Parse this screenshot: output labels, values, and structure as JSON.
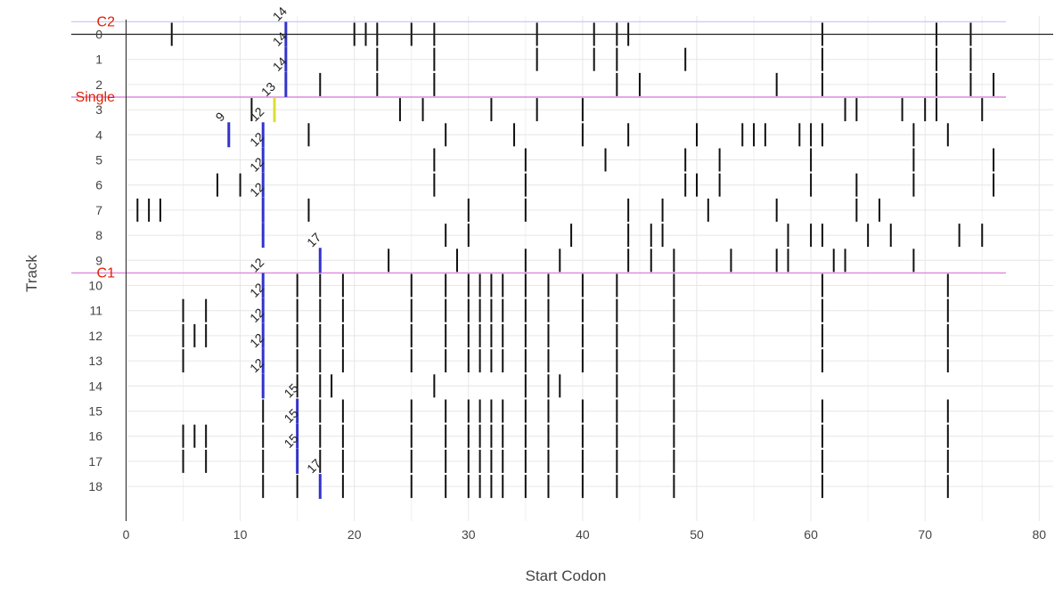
{
  "chart_data": {
    "type": "scatter",
    "title": "",
    "xlabel": "Start Codon",
    "ylabel": "Track",
    "xlim": [
      -1,
      81.5
    ],
    "ylim": [
      -0.5,
      19.5
    ],
    "x_ticks": [
      0,
      10,
      20,
      30,
      40,
      50,
      60,
      70,
      80
    ],
    "y_ticks": [
      0,
      1,
      2,
      3,
      4,
      5,
      6,
      7,
      8,
      9,
      10,
      11,
      12,
      13,
      14,
      15,
      16,
      17,
      18
    ],
    "y_reversed": true,
    "grid": true,
    "reference_lines": [
      {
        "label": "C2",
        "y": -0.5,
        "color": "#ccccff",
        "label_color": "#dd2200"
      },
      {
        "label": "Single",
        "y": 2.5,
        "color": "#dd88dd",
        "label_color": "#dd2200"
      },
      {
        "label": "C1",
        "y": 9.5,
        "color": "#dd88dd",
        "label_color": "#dd2200"
      }
    ],
    "zero_line": {
      "y": 0,
      "color": "#222222"
    },
    "highlights": [
      {
        "track": 0,
        "x": 14,
        "label": "14",
        "color": "#3333cc"
      },
      {
        "track": 1,
        "x": 14,
        "label": "14",
        "color": "#3333cc"
      },
      {
        "track": 2,
        "x": 14,
        "label": "14",
        "color": "#3333cc"
      },
      {
        "track": 3,
        "x": 13,
        "label": "13",
        "color": "#dddd33"
      },
      {
        "track": 4,
        "x": 9,
        "label": "9",
        "color": "#3333cc"
      },
      {
        "track": 4,
        "x": 12,
        "label": "12",
        "color": "#3333cc"
      },
      {
        "track": 5,
        "x": 12,
        "label": "12",
        "color": "#3333cc"
      },
      {
        "track": 6,
        "x": 12,
        "label": "12",
        "color": "#3333cc"
      },
      {
        "track": 7,
        "x": 12,
        "label": "12",
        "color": "#3333cc"
      },
      {
        "track": 8,
        "x": 12,
        "label": "",
        "color": "#3333cc"
      },
      {
        "track": 9,
        "x": 17,
        "label": "17",
        "color": "#3333cc"
      },
      {
        "track": 10,
        "x": 12,
        "label": "12",
        "color": "#3333cc"
      },
      {
        "track": 11,
        "x": 12,
        "label": "12",
        "color": "#3333cc"
      },
      {
        "track": 12,
        "x": 12,
        "label": "12",
        "color": "#3333cc"
      },
      {
        "track": 13,
        "x": 12,
        "label": "12",
        "color": "#3333cc"
      },
      {
        "track": 14,
        "x": 12,
        "label": "12",
        "color": "#3333cc"
      },
      {
        "track": 15,
        "x": 15,
        "label": "15",
        "color": "#3333cc"
      },
      {
        "track": 16,
        "x": 15,
        "label": "15",
        "color": "#3333cc"
      },
      {
        "track": 17,
        "x": 15,
        "label": "15",
        "color": "#3333cc"
      },
      {
        "track": 18,
        "x": 17,
        "label": "17",
        "color": "#3333cc"
      }
    ],
    "tracks": [
      {
        "track": 0,
        "starts": [
          4,
          20,
          21,
          22,
          25,
          27,
          36,
          41,
          43,
          44,
          61,
          71,
          74
        ]
      },
      {
        "track": 1,
        "starts": [
          22,
          27,
          36,
          41,
          43,
          49,
          61,
          71,
          74
        ]
      },
      {
        "track": 2,
        "starts": [
          17,
          22,
          27,
          43,
          45,
          57,
          61,
          71,
          74,
          76
        ]
      },
      {
        "track": 3,
        "starts": [
          11,
          24,
          26,
          32,
          36,
          40,
          63,
          64,
          68,
          70,
          71,
          75
        ]
      },
      {
        "track": 4,
        "starts": [
          16,
          28,
          34,
          40,
          44,
          50,
          54,
          55,
          56,
          59,
          60,
          61,
          69,
          72
        ]
      },
      {
        "track": 5,
        "starts": [
          27,
          35,
          42,
          49,
          52,
          60,
          69,
          76
        ]
      },
      {
        "track": 6,
        "starts": [
          8,
          10,
          27,
          35,
          49,
          50,
          52,
          60,
          64,
          69,
          76
        ]
      },
      {
        "track": 7,
        "starts": [
          1,
          2,
          3,
          16,
          30,
          35,
          44,
          47,
          51,
          57,
          64,
          66
        ]
      },
      {
        "track": 8,
        "starts": [
          28,
          30,
          39,
          44,
          46,
          47,
          58,
          60,
          61,
          65,
          67,
          73,
          75
        ]
      },
      {
        "track": 9,
        "starts": [
          23,
          29,
          35,
          38,
          44,
          46,
          48,
          53,
          57,
          58,
          62,
          63,
          69
        ]
      },
      {
        "track": 10,
        "starts": [
          15,
          17,
          19,
          25,
          28,
          30,
          31,
          32,
          33,
          35,
          37,
          40,
          43,
          48,
          61,
          72
        ]
      },
      {
        "track": 11,
        "starts": [
          5,
          7,
          15,
          17,
          19,
          25,
          28,
          30,
          31,
          32,
          33,
          35,
          37,
          40,
          43,
          48,
          61,
          72
        ]
      },
      {
        "track": 12,
        "starts": [
          5,
          6,
          7,
          15,
          17,
          19,
          25,
          28,
          30,
          31,
          32,
          33,
          35,
          37,
          40,
          43,
          48,
          61,
          72
        ]
      },
      {
        "track": 13,
        "starts": [
          5,
          15,
          17,
          19,
          25,
          28,
          30,
          31,
          32,
          33,
          35,
          37,
          40,
          43,
          48,
          61,
          72
        ]
      },
      {
        "track": 14,
        "starts": [
          15,
          17,
          18,
          27,
          35,
          37,
          38,
          43,
          48
        ]
      },
      {
        "track": 15,
        "starts": [
          12,
          17,
          19,
          25,
          28,
          30,
          31,
          32,
          33,
          35,
          37,
          40,
          43,
          48,
          61,
          72
        ]
      },
      {
        "track": 16,
        "starts": [
          5,
          6,
          7,
          12,
          17,
          19,
          25,
          28,
          30,
          31,
          32,
          33,
          35,
          37,
          40,
          43,
          48,
          61,
          72
        ]
      },
      {
        "track": 17,
        "starts": [
          5,
          7,
          12,
          17,
          19,
          25,
          28,
          30,
          31,
          32,
          33,
          35,
          37,
          40,
          43,
          48,
          61,
          72
        ]
      },
      {
        "track": 18,
        "starts": [
          12,
          15,
          19,
          25,
          28,
          30,
          31,
          32,
          33,
          35,
          37,
          40,
          43,
          48,
          61,
          72
        ]
      }
    ]
  }
}
